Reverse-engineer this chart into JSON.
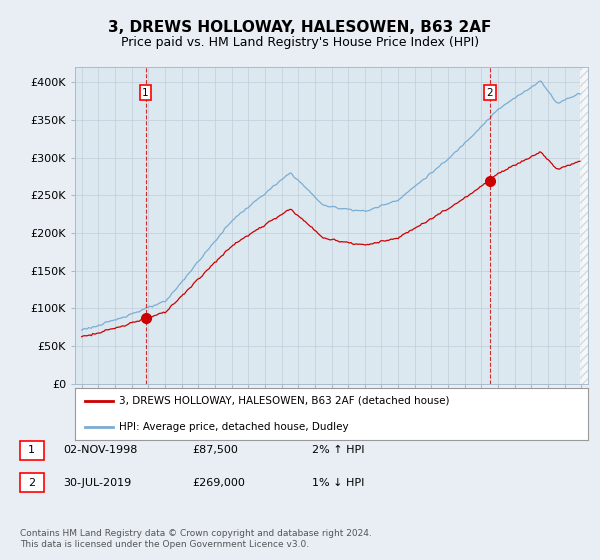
{
  "title": "3, DREWS HOLLOWAY, HALESOWEN, B63 2AF",
  "subtitle": "Price paid vs. HM Land Registry's House Price Index (HPI)",
  "ylim": [
    0,
    420000
  ],
  "yticks": [
    0,
    50000,
    100000,
    150000,
    200000,
    250000,
    300000,
    350000,
    400000
  ],
  "ytick_labels": [
    "£0",
    "£50K",
    "£100K",
    "£150K",
    "£200K",
    "£250K",
    "£300K",
    "£350K",
    "£400K"
  ],
  "hpi_color": "#7aadd4",
  "price_color": "#cc0000",
  "background_color": "#e8eef4",
  "plot_bg_color": "#dce8f0",
  "legend_label1": "3, DREWS HOLLOWAY, HALESOWEN, B63 2AF (detached house)",
  "legend_label2": "HPI: Average price, detached house, Dudley",
  "note1_date": "02-NOV-1998",
  "note1_price": "£87,500",
  "note1_hpi": "2% ↑ HPI",
  "note2_date": "30-JUL-2019",
  "note2_price": "£269,000",
  "note2_hpi": "1% ↓ HPI",
  "footer": "Contains HM Land Registry data © Crown copyright and database right 2024.\nThis data is licensed under the Open Government Licence v3.0.",
  "title_fontsize": 11,
  "subtitle_fontsize": 9,
  "tick_fontsize": 8
}
